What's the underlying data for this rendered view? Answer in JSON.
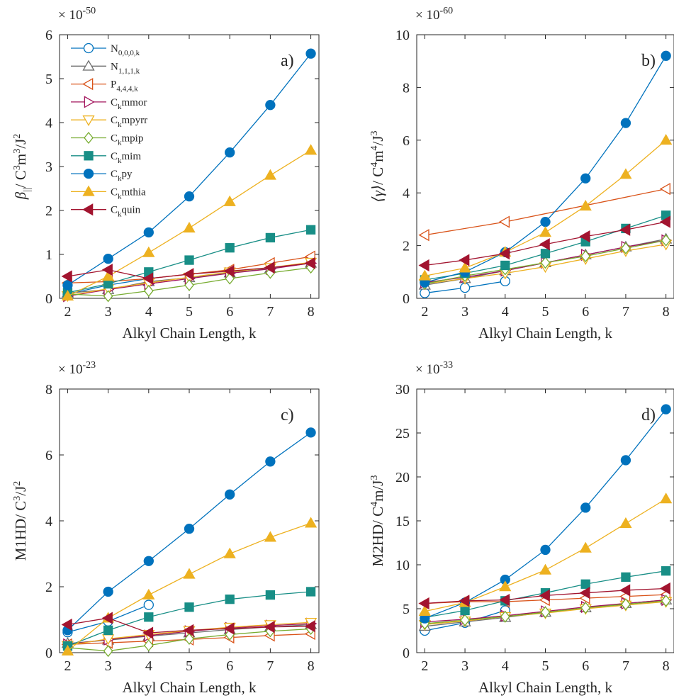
{
  "colors": {
    "N000k": "#0072BD",
    "N111k": "#6E6E6E",
    "P444k": "#D95319",
    "Ckmmor": "#A2145C",
    "Ckmpyrr": "#EDB120",
    "Ckmpip": "#77AC30",
    "Ckmim": "#188E86",
    "Ckpy": "#0072BD",
    "Ckmthia": "#EDB120",
    "Ckquin": "#A2142F"
  },
  "legend": [
    {
      "base": "N",
      "sub": "0,0,0,k",
      "tail": "",
      "marker": "circle-open",
      "color": "N000k"
    },
    {
      "base": "N",
      "sub": "1,1,1,k",
      "tail": "",
      "marker": "triangle-up-open",
      "color": "N111k"
    },
    {
      "base": "P",
      "sub": "4,4,4,k",
      "tail": "",
      "marker": "triangle-left-open",
      "color": "P444k"
    },
    {
      "base": "C",
      "sub": "k",
      "tail": "mmor",
      "marker": "triangle-right-open",
      "color": "Ckmmor"
    },
    {
      "base": "C",
      "sub": "k",
      "tail": "mpyrr",
      "marker": "triangle-down-open",
      "color": "Ckmpyrr"
    },
    {
      "base": "C",
      "sub": "k",
      "tail": "mpip",
      "marker": "diamond-open",
      "color": "Ckmpip"
    },
    {
      "base": "C",
      "sub": "k",
      "tail": "mim",
      "marker": "square-filled",
      "color": "Ckmim"
    },
    {
      "base": "C",
      "sub": "k",
      "tail": "py",
      "marker": "circle-filled",
      "color": "Ckpy"
    },
    {
      "base": "C",
      "sub": "k",
      "tail": "mthia",
      "marker": "triangle-up-filled",
      "color": "Ckmthia"
    },
    {
      "base": "C",
      "sub": "k",
      "tail": "quin",
      "marker": "triangle-left-filled",
      "color": "Ckquin"
    }
  ],
  "chart_data": [
    {
      "type": "line",
      "panel": "a)",
      "xlabel": "Alkyl Chain Length, k",
      "ylabel": {
        "greek": "β",
        "sub": "||",
        "rest": "/ C",
        "p1": "3",
        "mid": "m",
        "p2": "3",
        "end": "/J",
        "p3": "2"
      },
      "multiplier": {
        "base": "× 10",
        "exp": "-50"
      },
      "xlim": [
        1.8,
        8.2
      ],
      "ylim": [
        0,
        6
      ],
      "xticks": [
        2,
        3,
        4,
        5,
        6,
        7,
        8
      ],
      "yticks": [
        0,
        1,
        2,
        3,
        4,
        5,
        6
      ],
      "series": [
        {
          "name": "N0,0,0,k",
          "x": [
            2,
            3,
            4
          ],
          "y": [
            0.1,
            0.3,
            0.45
          ]
        },
        {
          "name": "N1,1,1,k",
          "x": [
            2,
            3,
            4,
            5,
            6,
            7,
            8
          ],
          "y": [
            0.12,
            0.2,
            0.38,
            0.47,
            0.58,
            0.68,
            0.8
          ]
        },
        {
          "name": "P4,4,4,k",
          "x": [
            2,
            3,
            4,
            5,
            6,
            7,
            8
          ],
          "y": [
            0.35,
            0.38,
            0.45,
            0.55,
            0.65,
            0.8,
            0.95
          ]
        },
        {
          "name": "Ckmmor",
          "x": [
            2,
            3,
            4,
            5,
            6,
            7,
            8
          ],
          "y": [
            0.05,
            0.2,
            0.33,
            0.45,
            0.57,
            0.67,
            0.8
          ]
        },
        {
          "name": "Ckmpyrr",
          "x": [
            2,
            3,
            4,
            5,
            6,
            7,
            8
          ],
          "y": [
            0.06,
            0.22,
            0.35,
            0.48,
            0.6,
            0.7,
            0.82
          ]
        },
        {
          "name": "Ckmpip",
          "x": [
            2,
            3,
            4,
            5,
            6,
            7,
            8
          ],
          "y": [
            0.1,
            0.05,
            0.17,
            0.3,
            0.45,
            0.58,
            0.7
          ]
        },
        {
          "name": "Ckmim",
          "x": [
            2,
            3,
            4,
            5,
            6,
            7,
            8
          ],
          "y": [
            0.13,
            0.33,
            0.6,
            0.87,
            1.15,
            1.38,
            1.56
          ]
        },
        {
          "name": "Ckpy",
          "x": [
            2,
            3,
            4,
            5,
            6,
            7,
            8
          ],
          "y": [
            0.3,
            0.9,
            1.5,
            2.32,
            3.32,
            4.4,
            5.57
          ]
        },
        {
          "name": "Ckmthia",
          "x": [
            2,
            3,
            4,
            5,
            6,
            7,
            8
          ],
          "y": [
            0.05,
            0.5,
            1.04,
            1.6,
            2.2,
            2.8,
            3.37
          ]
        },
        {
          "name": "Ckquin",
          "x": [
            2,
            3,
            4,
            5,
            6,
            7,
            8
          ],
          "y": [
            0.5,
            0.65,
            0.45,
            0.55,
            0.62,
            0.7,
            0.8
          ]
        }
      ]
    },
    {
      "type": "line",
      "panel": "b)",
      "xlabel": "Alkyl Chain Length, k",
      "ylabel": {
        "greek": "⟨γ⟩",
        "sub": "",
        "rest": "/ C",
        "p1": "4",
        "mid": "m",
        "p2": "4",
        "end": "/J",
        "p3": "3"
      },
      "multiplier": {
        "base": "× 10",
        "exp": "-60"
      },
      "xlim": [
        1.8,
        8.2
      ],
      "ylim": [
        0,
        10
      ],
      "xticks": [
        2,
        3,
        4,
        5,
        6,
        7,
        8
      ],
      "yticks": [
        0,
        2,
        4,
        6,
        8,
        10
      ],
      "series": [
        {
          "name": "N0,0,0,k",
          "x": [
            2,
            3,
            4
          ],
          "y": [
            0.2,
            0.4,
            0.65
          ]
        },
        {
          "name": "N1,1,1,k",
          "x": [
            2,
            3,
            4,
            5,
            6,
            7,
            8
          ],
          "y": [
            0.5,
            0.75,
            1.05,
            1.35,
            1.65,
            1.95,
            2.25
          ]
        },
        {
          "name": "P4,4,4,k",
          "x": [
            2,
            4,
            8
          ],
          "y": [
            2.4,
            2.9,
            4.15
          ]
        },
        {
          "name": "Ckmmor",
          "x": [
            2,
            3,
            4,
            5,
            6,
            7,
            8
          ],
          "y": [
            0.6,
            0.8,
            1.05,
            1.35,
            1.65,
            1.95,
            2.2
          ]
        },
        {
          "name": "Ckmpyrr",
          "x": [
            2,
            3,
            4,
            5,
            6,
            7,
            8
          ],
          "y": [
            0.55,
            0.75,
            0.95,
            1.2,
            1.5,
            1.8,
            2.05
          ]
        },
        {
          "name": "Ckmpip",
          "x": [
            2,
            3,
            4,
            5,
            6,
            7,
            8
          ],
          "y": [
            0.55,
            0.85,
            1.1,
            1.35,
            1.6,
            1.9,
            2.2
          ]
        },
        {
          "name": "Ckmim",
          "x": [
            2,
            3,
            4,
            5,
            6,
            7,
            8
          ],
          "y": [
            0.7,
            0.95,
            1.25,
            1.7,
            2.15,
            2.65,
            3.15
          ]
        },
        {
          "name": "Ckpy",
          "x": [
            2,
            3,
            4,
            5,
            6,
            7,
            8
          ],
          "y": [
            0.6,
            1.0,
            1.75,
            2.9,
            4.55,
            6.65,
            9.2
          ]
        },
        {
          "name": "Ckmthia",
          "x": [
            2,
            3,
            4,
            5,
            6,
            7,
            8
          ],
          "y": [
            0.85,
            1.15,
            1.75,
            2.5,
            3.5,
            4.7,
            6.0
          ]
        },
        {
          "name": "Ckquin",
          "x": [
            2,
            3,
            4,
            5,
            6,
            7,
            8
          ],
          "y": [
            1.25,
            1.45,
            1.7,
            2.05,
            2.35,
            2.6,
            2.9
          ]
        }
      ]
    },
    {
      "type": "line",
      "panel": "c)",
      "xlabel": "Alkyl Chain Length, k",
      "ylabel": {
        "greek": "",
        "sub": "",
        "rest": "M1HD/ C",
        "p1": "3",
        "mid": "",
        "p2": "",
        "end": "/J",
        "p3": "2"
      },
      "multiplier": {
        "base": "× 10",
        "exp": "-23"
      },
      "xlim": [
        1.8,
        8.2
      ],
      "ylim": [
        0,
        8
      ],
      "xticks": [
        2,
        3,
        4,
        5,
        6,
        7,
        8
      ],
      "yticks": [
        0,
        2,
        4,
        6,
        8
      ],
      "series": [
        {
          "name": "N0,0,0,k",
          "x": [
            2,
            3,
            4
          ],
          "y": [
            0.62,
            0.95,
            1.45
          ]
        },
        {
          "name": "N1,1,1,k",
          "x": [
            2,
            3,
            4,
            5,
            6,
            7,
            8
          ],
          "y": [
            0.28,
            0.38,
            0.5,
            0.6,
            0.7,
            0.78,
            0.85
          ]
        },
        {
          "name": "P4,4,4,k",
          "x": [
            2,
            3,
            4,
            5,
            6,
            7,
            8
          ],
          "y": [
            0.25,
            0.3,
            0.35,
            0.4,
            0.46,
            0.52,
            0.57
          ]
        },
        {
          "name": "Ckmmor",
          "x": [
            2,
            3,
            4,
            5,
            6,
            7,
            8
          ],
          "y": [
            0.25,
            0.4,
            0.52,
            0.65,
            0.75,
            0.82,
            0.88
          ]
        },
        {
          "name": "Ckmpyrr",
          "x": [
            2,
            3,
            4,
            5,
            6,
            7,
            8
          ],
          "y": [
            0.22,
            0.42,
            0.55,
            0.67,
            0.77,
            0.85,
            0.92
          ]
        },
        {
          "name": "Ckmpip",
          "x": [
            2,
            3,
            4,
            5,
            6,
            7,
            8
          ],
          "y": [
            0.15,
            0.05,
            0.22,
            0.42,
            0.55,
            0.65,
            0.72
          ]
        },
        {
          "name": "Ckmim",
          "x": [
            2,
            3,
            4,
            5,
            6,
            7,
            8
          ],
          "y": [
            0.2,
            0.68,
            1.08,
            1.38,
            1.62,
            1.75,
            1.85
          ]
        },
        {
          "name": "Ckpy",
          "x": [
            2,
            3,
            4,
            5,
            6,
            7,
            8
          ],
          "y": [
            0.68,
            1.85,
            2.78,
            3.76,
            4.8,
            5.8,
            6.68
          ]
        },
        {
          "name": "Ckmthia",
          "x": [
            2,
            3,
            4,
            5,
            6,
            7,
            8
          ],
          "y": [
            0.05,
            1.05,
            1.75,
            2.38,
            3.0,
            3.5,
            3.93
          ]
        },
        {
          "name": "Ckquin",
          "x": [
            2,
            3,
            4,
            5,
            6,
            7,
            8
          ],
          "y": [
            0.85,
            1.05,
            0.6,
            0.68,
            0.73,
            0.78,
            0.8
          ]
        }
      ]
    },
    {
      "type": "line",
      "panel": "d)",
      "xlabel": "Alkyl Chain Length, k",
      "ylabel": {
        "greek": "",
        "sub": "",
        "rest": "M2HD/ C",
        "p1": "4",
        "mid": "m/J",
        "p2": "3",
        "end": "",
        "p3": ""
      },
      "multiplier": {
        "base": "× 10",
        "exp": "-33"
      },
      "xlim": [
        1.8,
        8.2
      ],
      "ylim": [
        0,
        30
      ],
      "xticks": [
        2,
        3,
        4,
        5,
        6,
        7,
        8
      ],
      "yticks": [
        0,
        5,
        10,
        15,
        20,
        25,
        30
      ],
      "series": [
        {
          "name": "N0,0,0,k",
          "x": [
            2,
            3,
            4
          ],
          "y": [
            2.5,
            3.4,
            4.8
          ]
        },
        {
          "name": "N1,1,1,k",
          "x": [
            2,
            3,
            4,
            5,
            6,
            7,
            8
          ],
          "y": [
            3.0,
            3.5,
            4.0,
            4.6,
            5.1,
            5.6,
            6.0
          ]
        },
        {
          "name": "P4,4,4,k",
          "x": [
            2,
            3,
            4,
            5,
            6,
            7,
            8
          ],
          "y": [
            5.6,
            5.8,
            5.8,
            6.0,
            6.2,
            6.4,
            6.6
          ]
        },
        {
          "name": "Ckmmor",
          "x": [
            2,
            3,
            4,
            5,
            6,
            7,
            8
          ],
          "y": [
            3.5,
            3.8,
            4.2,
            4.7,
            5.2,
            5.6,
            6.0
          ]
        },
        {
          "name": "Ckmpyrr",
          "x": [
            2,
            3,
            4,
            5,
            6,
            7,
            8
          ],
          "y": [
            3.2,
            3.6,
            4.1,
            4.5,
            5.0,
            5.4,
            5.8
          ]
        },
        {
          "name": "Ckmpip",
          "x": [
            2,
            3,
            4,
            5,
            6,
            7,
            8
          ],
          "y": [
            3.3,
            3.7,
            4.1,
            4.6,
            5.1,
            5.5,
            5.9
          ]
        },
        {
          "name": "Ckmim",
          "x": [
            2,
            3,
            4,
            5,
            6,
            7,
            8
          ],
          "y": [
            4.0,
            4.8,
            5.9,
            6.8,
            7.8,
            8.6,
            9.3
          ]
        },
        {
          "name": "Ckpy",
          "x": [
            2,
            3,
            4,
            5,
            6,
            7,
            8
          ],
          "y": [
            3.9,
            5.7,
            8.3,
            11.7,
            16.5,
            21.9,
            27.7
          ]
        },
        {
          "name": "Ckmthia",
          "x": [
            2,
            3,
            4,
            5,
            6,
            7,
            8
          ],
          "y": [
            4.7,
            5.7,
            7.5,
            9.4,
            11.9,
            14.7,
            17.5
          ]
        },
        {
          "name": "Ckquin",
          "x": [
            2,
            3,
            4,
            5,
            6,
            7,
            8
          ],
          "y": [
            5.6,
            5.9,
            6.0,
            6.5,
            6.8,
            7.1,
            7.3
          ]
        }
      ]
    }
  ]
}
